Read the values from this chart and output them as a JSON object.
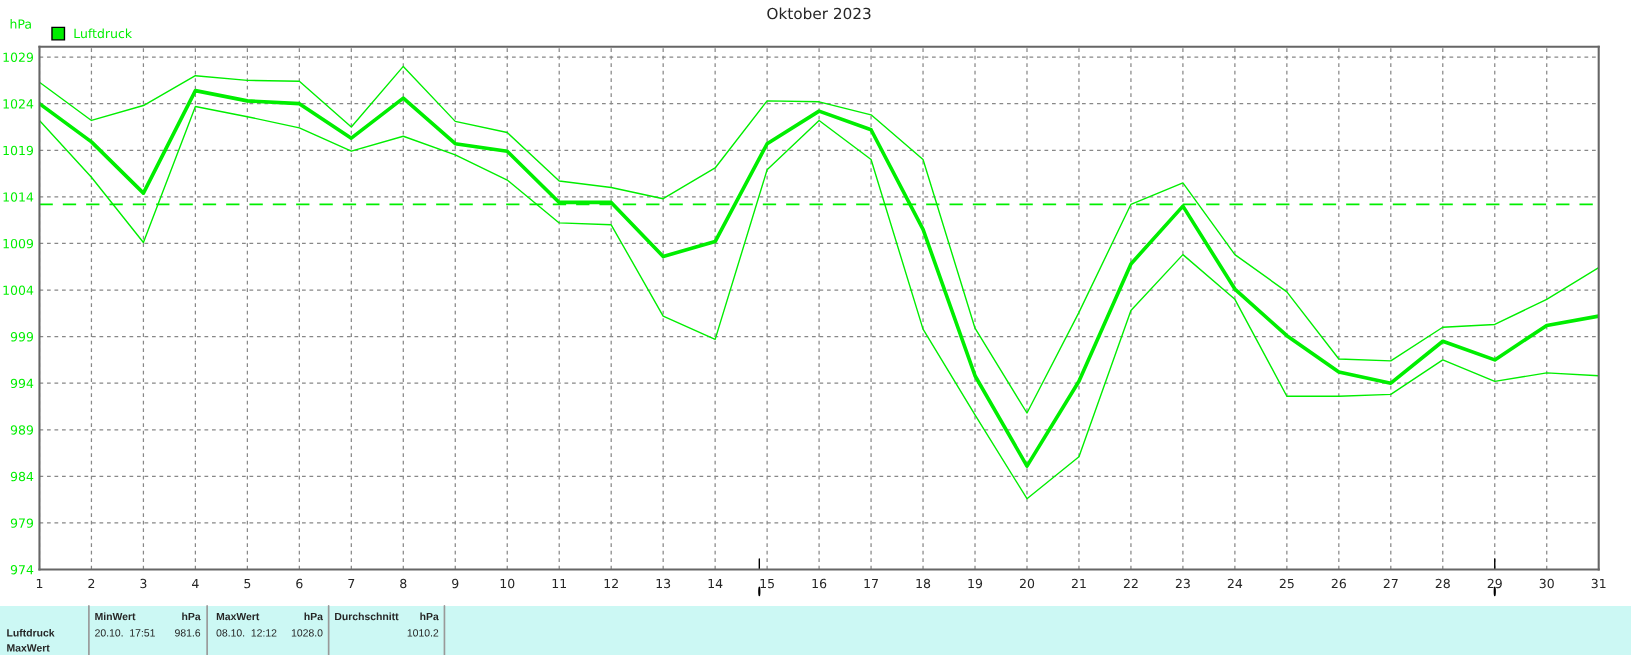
{
  "chart_data": {
    "type": "line",
    "title": "Oktober 2023",
    "ylabel": "hPa",
    "x": [
      1,
      2,
      3,
      4,
      5,
      6,
      7,
      8,
      9,
      10,
      11,
      12,
      13,
      14,
      15,
      16,
      17,
      18,
      19,
      20,
      21,
      22,
      23,
      24,
      25,
      26,
      27,
      28,
      29,
      30,
      31
    ],
    "series": [
      {
        "name": "Luftdruck",
        "color": "#00ee00",
        "values": [
          1024.0,
          1019.9,
          1014.4,
          1025.4,
          1024.3,
          1024.0,
          1020.3,
          1024.6,
          1019.7,
          1018.9,
          1013.4,
          1013.4,
          1007.6,
          1009.2,
          1019.7,
          1023.2,
          1021.2,
          1010.5,
          994.8,
          985.1,
          994.2,
          1006.8,
          1013.0,
          1004.1,
          999.1,
          995.2,
          994.0,
          998.5,
          996.5,
          1000.2,
          1001.2
        ]
      },
      {
        "color": "#00ee00",
        "values": [
          1022.2,
          1016.1,
          1009.1,
          1023.7,
          1022.6,
          1021.4,
          1018.9,
          1020.5,
          1018.5,
          1015.8,
          1011.2,
          1011.0,
          1001.2,
          998.7,
          1016.9,
          1022.2,
          1018.0,
          999.8,
          990.6,
          981.6,
          986.1,
          1001.8,
          1007.8,
          1003.0,
          992.6,
          992.6,
          992.8,
          996.5,
          994.2,
          995.1,
          994.8
        ]
      },
      {
        "color": "#00ee00",
        "values": [
          1026.3,
          1022.2,
          1023.8,
          1027.0,
          1026.5,
          1026.4,
          1021.5,
          1028.0,
          1022.1,
          1020.9,
          1015.7,
          1015.0,
          1013.8,
          1017.1,
          1024.3,
          1024.2,
          1022.8,
          1018.0,
          999.9,
          990.8,
          1001.6,
          1013.2,
          1015.5,
          1007.8,
          1003.8,
          996.6,
          996.4,
          1000.0,
          1000.3,
          1003.0,
          1006.4
        ]
      }
    ],
    "xlim": [
      1,
      31
    ],
    "xticks": [
      1,
      2,
      3,
      4,
      5,
      6,
      7,
      8,
      9,
      10,
      11,
      12,
      13,
      14,
      15,
      16,
      17,
      18,
      19,
      20,
      21,
      22,
      23,
      24,
      25,
      26,
      27,
      28,
      29,
      30,
      31
    ],
    "ylim": [
      974,
      1030.1
    ],
    "yticks": [
      974,
      979,
      984,
      989,
      994,
      999,
      1004,
      1009,
      1014,
      1019,
      1024,
      1029
    ],
    "ref_lines": [
      {
        "axis": "y",
        "value": 1013.2,
        "color": "#00ee00",
        "line_style": "dashed"
      }
    ],
    "grid": true,
    "legend": "top left",
    "marker": "none",
    "line_style": "solid",
    "annotations": [
      "Luftdruck",
      "MaxWert",
      "MinWert",
      "hPa",
      "20.10.  17:51",
      "981.6",
      "MaxWert",
      "hPa",
      "08.10.  12:12",
      "1028.0",
      "Durchschnitt",
      "hPa",
      "1010.2"
    ]
  }
}
